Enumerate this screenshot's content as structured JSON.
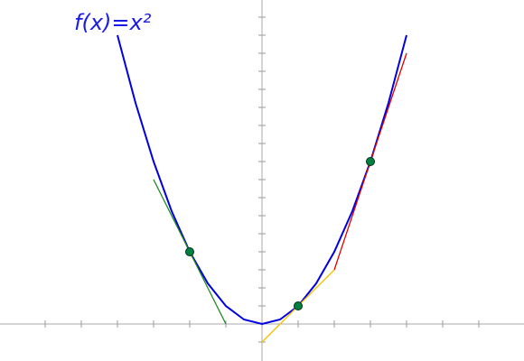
{
  "chart_data": {
    "type": "line",
    "title": "f(x)=x²",
    "title_color": "#1a1ae6",
    "xlim": [
      -7.25,
      7.25
    ],
    "ylim": [
      -2.05,
      17.95
    ],
    "xticks": [
      -6,
      -5,
      -4,
      -3,
      -2,
      -1,
      0,
      1,
      2,
      3,
      4,
      5,
      6
    ],
    "yticks": [
      -1,
      1,
      2,
      3,
      4,
      5,
      6,
      7,
      8,
      9,
      10,
      11,
      12,
      13,
      14,
      15,
      16,
      17
    ],
    "series": [
      {
        "color": "#0000e0",
        "x": [
          -4,
          -3.5,
          -3,
          -2.5,
          -2,
          -1.5,
          -1,
          -0.5,
          0,
          0.5,
          1,
          1.5,
          2,
          2.5,
          3,
          3.5,
          4
        ],
        "values": [
          16,
          12.25,
          9,
          6.25,
          4,
          2.25,
          1,
          0.25,
          0,
          0.25,
          1,
          2.25,
          4,
          6.25,
          9,
          12.25,
          16
        ]
      },
      {
        "color": "#228b22",
        "x": [
          -3,
          -1
        ],
        "values": [
          8,
          0
        ]
      },
      {
        "color": "#f2c200",
        "x": [
          0,
          2
        ],
        "values": [
          -1,
          3
        ]
      },
      {
        "color": "#e00000",
        "x": [
          2,
          4
        ],
        "values": [
          3,
          15
        ]
      }
    ],
    "points": {
      "color": "#008040",
      "x": [
        -2,
        1,
        3
      ],
      "values": [
        4,
        1,
        9
      ]
    }
  }
}
